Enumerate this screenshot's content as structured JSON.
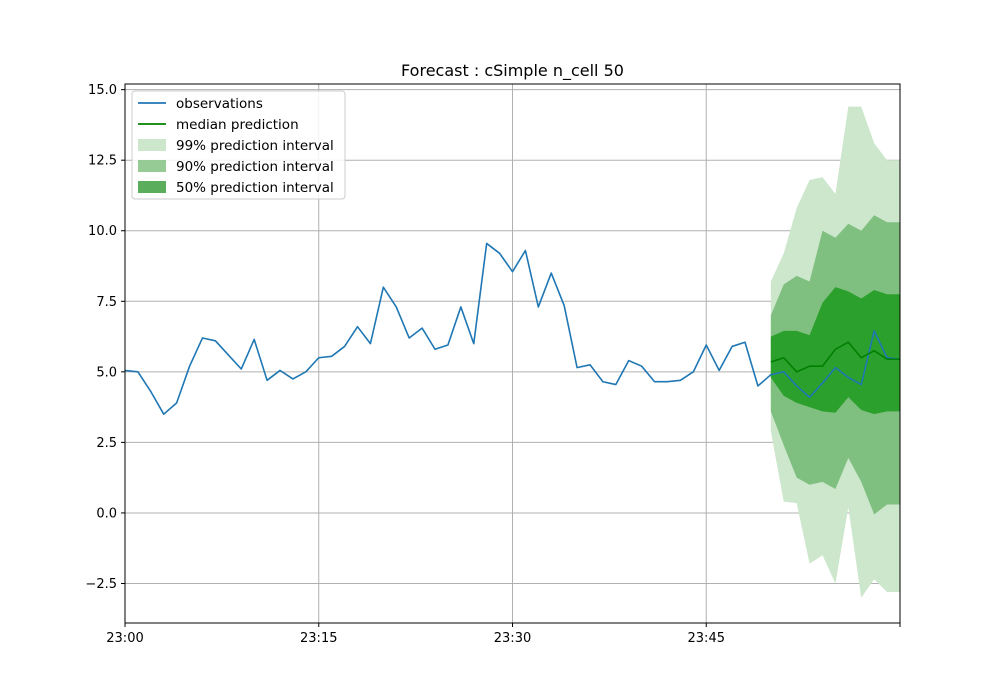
{
  "chart_data": {
    "type": "line",
    "title": "Forecast : cSimple n_cell 50",
    "xlabel": "",
    "ylabel": "",
    "grid": true,
    "legend_position": "top-left",
    "x_start": "23:00",
    "x_end": "24:00",
    "xticks": [
      "23:00",
      "23:15",
      "23:30",
      "23:45"
    ],
    "yticks": [
      -2.5,
      0.0,
      2.5,
      5.0,
      7.5,
      10.0,
      12.5,
      15.0
    ],
    "ytick_labels": [
      "−2.5",
      "0.0",
      "2.5",
      "5.0",
      "7.5",
      "10.0",
      "12.5",
      "15.0"
    ],
    "ylim": [
      -3.9,
      15.2
    ],
    "colors": {
      "observations": "#1f77b4",
      "median": "#008000",
      "band99": "#cce7cc",
      "band90": "#7fbf7f",
      "band50": "#2ca02c",
      "grid": "#b0b0b0"
    },
    "legend": [
      {
        "label": "observations",
        "kind": "line",
        "color": "#1f77b4"
      },
      {
        "label": "median prediction",
        "kind": "line",
        "color": "#008000"
      },
      {
        "label": "99% prediction interval",
        "kind": "patch",
        "color": "#cce7cc"
      },
      {
        "label": "90% prediction interval",
        "kind": "patch",
        "color": "#96cb96"
      },
      {
        "label": "50% prediction interval",
        "kind": "patch",
        "color": "#5aad5a"
      }
    ],
    "series": [
      {
        "name": "observations",
        "x": [
          "23:00",
          "23:01",
          "23:02",
          "23:03",
          "23:04",
          "23:05",
          "23:06",
          "23:07",
          "23:08",
          "23:09",
          "23:10",
          "23:11",
          "23:12",
          "23:13",
          "23:14",
          "23:15",
          "23:16",
          "23:17",
          "23:18",
          "23:19",
          "23:20",
          "23:21",
          "23:22",
          "23:23",
          "23:24",
          "23:25",
          "23:26",
          "23:27",
          "23:28",
          "23:29",
          "23:30",
          "23:31",
          "23:32",
          "23:33",
          "23:34",
          "23:35",
          "23:36",
          "23:37",
          "23:38",
          "23:39",
          "23:40",
          "23:41",
          "23:42",
          "23:43",
          "23:44",
          "23:45",
          "23:46",
          "23:47",
          "23:48",
          "23:49",
          "23:50",
          "23:51",
          "23:52",
          "23:53",
          "23:54",
          "23:55",
          "23:56",
          "23:57",
          "23:58",
          "23:59",
          "24:00"
        ],
        "values": [
          5.05,
          5.0,
          4.3,
          3.5,
          3.9,
          5.2,
          6.2,
          6.1,
          5.6,
          5.1,
          6.15,
          4.7,
          5.05,
          4.75,
          5.0,
          5.5,
          5.55,
          5.9,
          6.6,
          6.0,
          8.0,
          7.3,
          6.2,
          6.55,
          5.8,
          5.95,
          7.3,
          6.0,
          9.55,
          9.2,
          8.55,
          9.3,
          7.3,
          8.5,
          7.35,
          5.15,
          5.25,
          4.65,
          4.55,
          5.4,
          5.2,
          4.65,
          4.65,
          4.7,
          5.0,
          5.95,
          5.05,
          5.9,
          6.05,
          4.5,
          4.9,
          5.0,
          4.5,
          4.1,
          4.6,
          5.15,
          4.8,
          4.55,
          6.45,
          5.5,
          5.45
        ]
      },
      {
        "name": "median prediction",
        "x": [
          "23:50",
          "23:51",
          "23:52",
          "23:53",
          "23:54",
          "23:55",
          "23:56",
          "23:57",
          "23:58",
          "23:59",
          "24:00"
        ],
        "values": [
          5.35,
          5.5,
          5.0,
          5.2,
          5.2,
          5.8,
          6.05,
          5.5,
          5.75,
          5.45,
          5.45
        ]
      }
    ],
    "intervals": [
      {
        "name": "99% prediction interval",
        "x": [
          "23:50",
          "23:51",
          "23:52",
          "23:53",
          "23:54",
          "23:55",
          "23:56",
          "23:57",
          "23:58",
          "23:59",
          "24:00"
        ],
        "lower": [
          2.9,
          0.4,
          0.35,
          -1.8,
          -1.5,
          -2.5,
          0.2,
          -3.0,
          -2.35,
          -2.8,
          -2.8
        ],
        "upper": [
          8.2,
          9.2,
          10.8,
          11.8,
          11.9,
          11.3,
          14.4,
          14.4,
          13.1,
          12.5,
          12.5
        ]
      },
      {
        "name": "90% prediction interval",
        "x": [
          "23:50",
          "23:51",
          "23:52",
          "23:53",
          "23:54",
          "23:55",
          "23:56",
          "23:57",
          "23:58",
          "23:59",
          "24:00"
        ],
        "lower": [
          3.6,
          2.4,
          1.25,
          1.0,
          1.1,
          0.85,
          1.95,
          1.1,
          -0.05,
          0.3,
          0.3
        ],
        "upper": [
          7.0,
          8.1,
          8.4,
          8.2,
          10.0,
          9.75,
          10.25,
          10.0,
          10.55,
          10.3,
          10.3
        ]
      },
      {
        "name": "50% prediction interval",
        "x": [
          "23:50",
          "23:51",
          "23:52",
          "23:53",
          "23:54",
          "23:55",
          "23:56",
          "23:57",
          "23:58",
          "23:59",
          "24:00"
        ],
        "lower": [
          4.8,
          4.15,
          3.9,
          3.75,
          3.6,
          3.55,
          4.1,
          3.65,
          3.5,
          3.6,
          3.6
        ],
        "upper": [
          6.25,
          6.45,
          6.45,
          6.3,
          7.45,
          8.0,
          7.85,
          7.6,
          7.9,
          7.75,
          7.75
        ]
      }
    ]
  }
}
